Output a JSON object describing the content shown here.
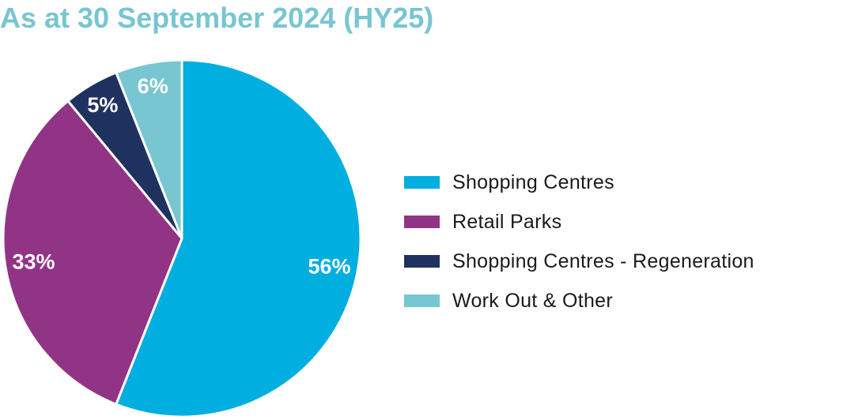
{
  "chart_data": {
    "type": "pie",
    "title": "As at 30 September 2024 (HY25)",
    "slices": [
      {
        "label": "Shopping Centres",
        "value": 56,
        "value_label": "56%",
        "color": "#00aee0"
      },
      {
        "label": "Retail Parks",
        "value": 33,
        "value_label": "33%",
        "color": "#923486"
      },
      {
        "label": "Shopping Centres - Regeneration",
        "value": 5,
        "value_label": "5%",
        "color": "#1f325f"
      },
      {
        "label": "Work Out & Other",
        "value": 6,
        "value_label": "6%",
        "color": "#77c6d1"
      }
    ],
    "start": "12 o'clock",
    "direction": "clockwise",
    "legend_position": "right"
  }
}
